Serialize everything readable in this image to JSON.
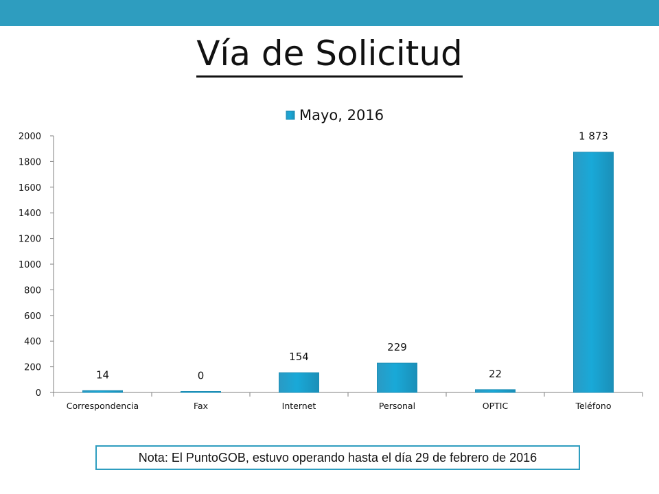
{
  "page": {
    "title": "Vía de Solicitud",
    "note": "Nota: El PuntoGOB, estuvo operando hasta el día 29 de febrero de 2016"
  },
  "colors": {
    "band": "#2e9dbf",
    "bar": "#1fa3cf",
    "bar_edge": "#1c8db4",
    "text": "#111111",
    "axis": "#7f7f7f"
  },
  "chart_data": {
    "type": "bar",
    "title": "",
    "legend_position": "top-center",
    "categories": [
      "Correspondencia",
      "Fax",
      "Internet",
      "Personal",
      "OPTIC",
      "Teléfono"
    ],
    "series": [
      {
        "name": "Mayo, 2016",
        "values": [
          14,
          0,
          154,
          229,
          22,
          1873
        ],
        "data_labels": [
          "14",
          "0",
          "154",
          "229",
          "22",
          "1 873"
        ]
      }
    ],
    "xlabel": "",
    "ylabel": "",
    "ylim": [
      0,
      2000
    ],
    "yticks": [
      0,
      200,
      400,
      600,
      800,
      1000,
      1200,
      1400,
      1600,
      1800,
      2000
    ],
    "grid": false
  }
}
